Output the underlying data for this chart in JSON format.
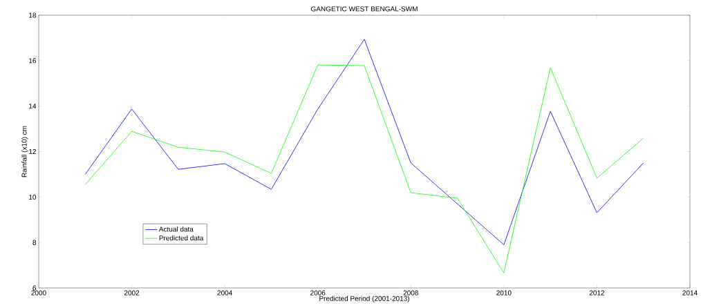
{
  "chart_data": {
    "type": "line",
    "title": "GANGETIC WEST BENGAL-SWM",
    "xlabel": "Predicted Period (2001-2013)",
    "ylabel": "Rainfall (x10) cm",
    "x": [
      2001,
      2002,
      2003,
      2004,
      2005,
      2006,
      2007,
      2008,
      2009,
      2010,
      2011,
      2012,
      2013
    ],
    "series": [
      {
        "name": "Actual data",
        "color": "#0000ff",
        "values": [
          11.0,
          13.87,
          11.22,
          11.47,
          10.34,
          13.87,
          16.94,
          11.5,
          9.7,
          7.9,
          13.77,
          9.31,
          11.5
        ]
      },
      {
        "name": "Predicted data",
        "color": "#00ff00",
        "values": [
          10.55,
          12.89,
          12.19,
          11.98,
          11.04,
          15.81,
          15.78,
          10.19,
          9.95,
          6.66,
          15.69,
          10.83,
          12.59
        ]
      }
    ],
    "xlim": [
      2000,
      2014
    ],
    "xticks": [
      2000,
      2002,
      2004,
      2006,
      2008,
      2010,
      2012,
      2014
    ],
    "ylim": [
      6,
      18
    ],
    "yticks": [
      6,
      8,
      10,
      12,
      14,
      16,
      18
    ],
    "grid": false,
    "legend": "bottom left"
  }
}
